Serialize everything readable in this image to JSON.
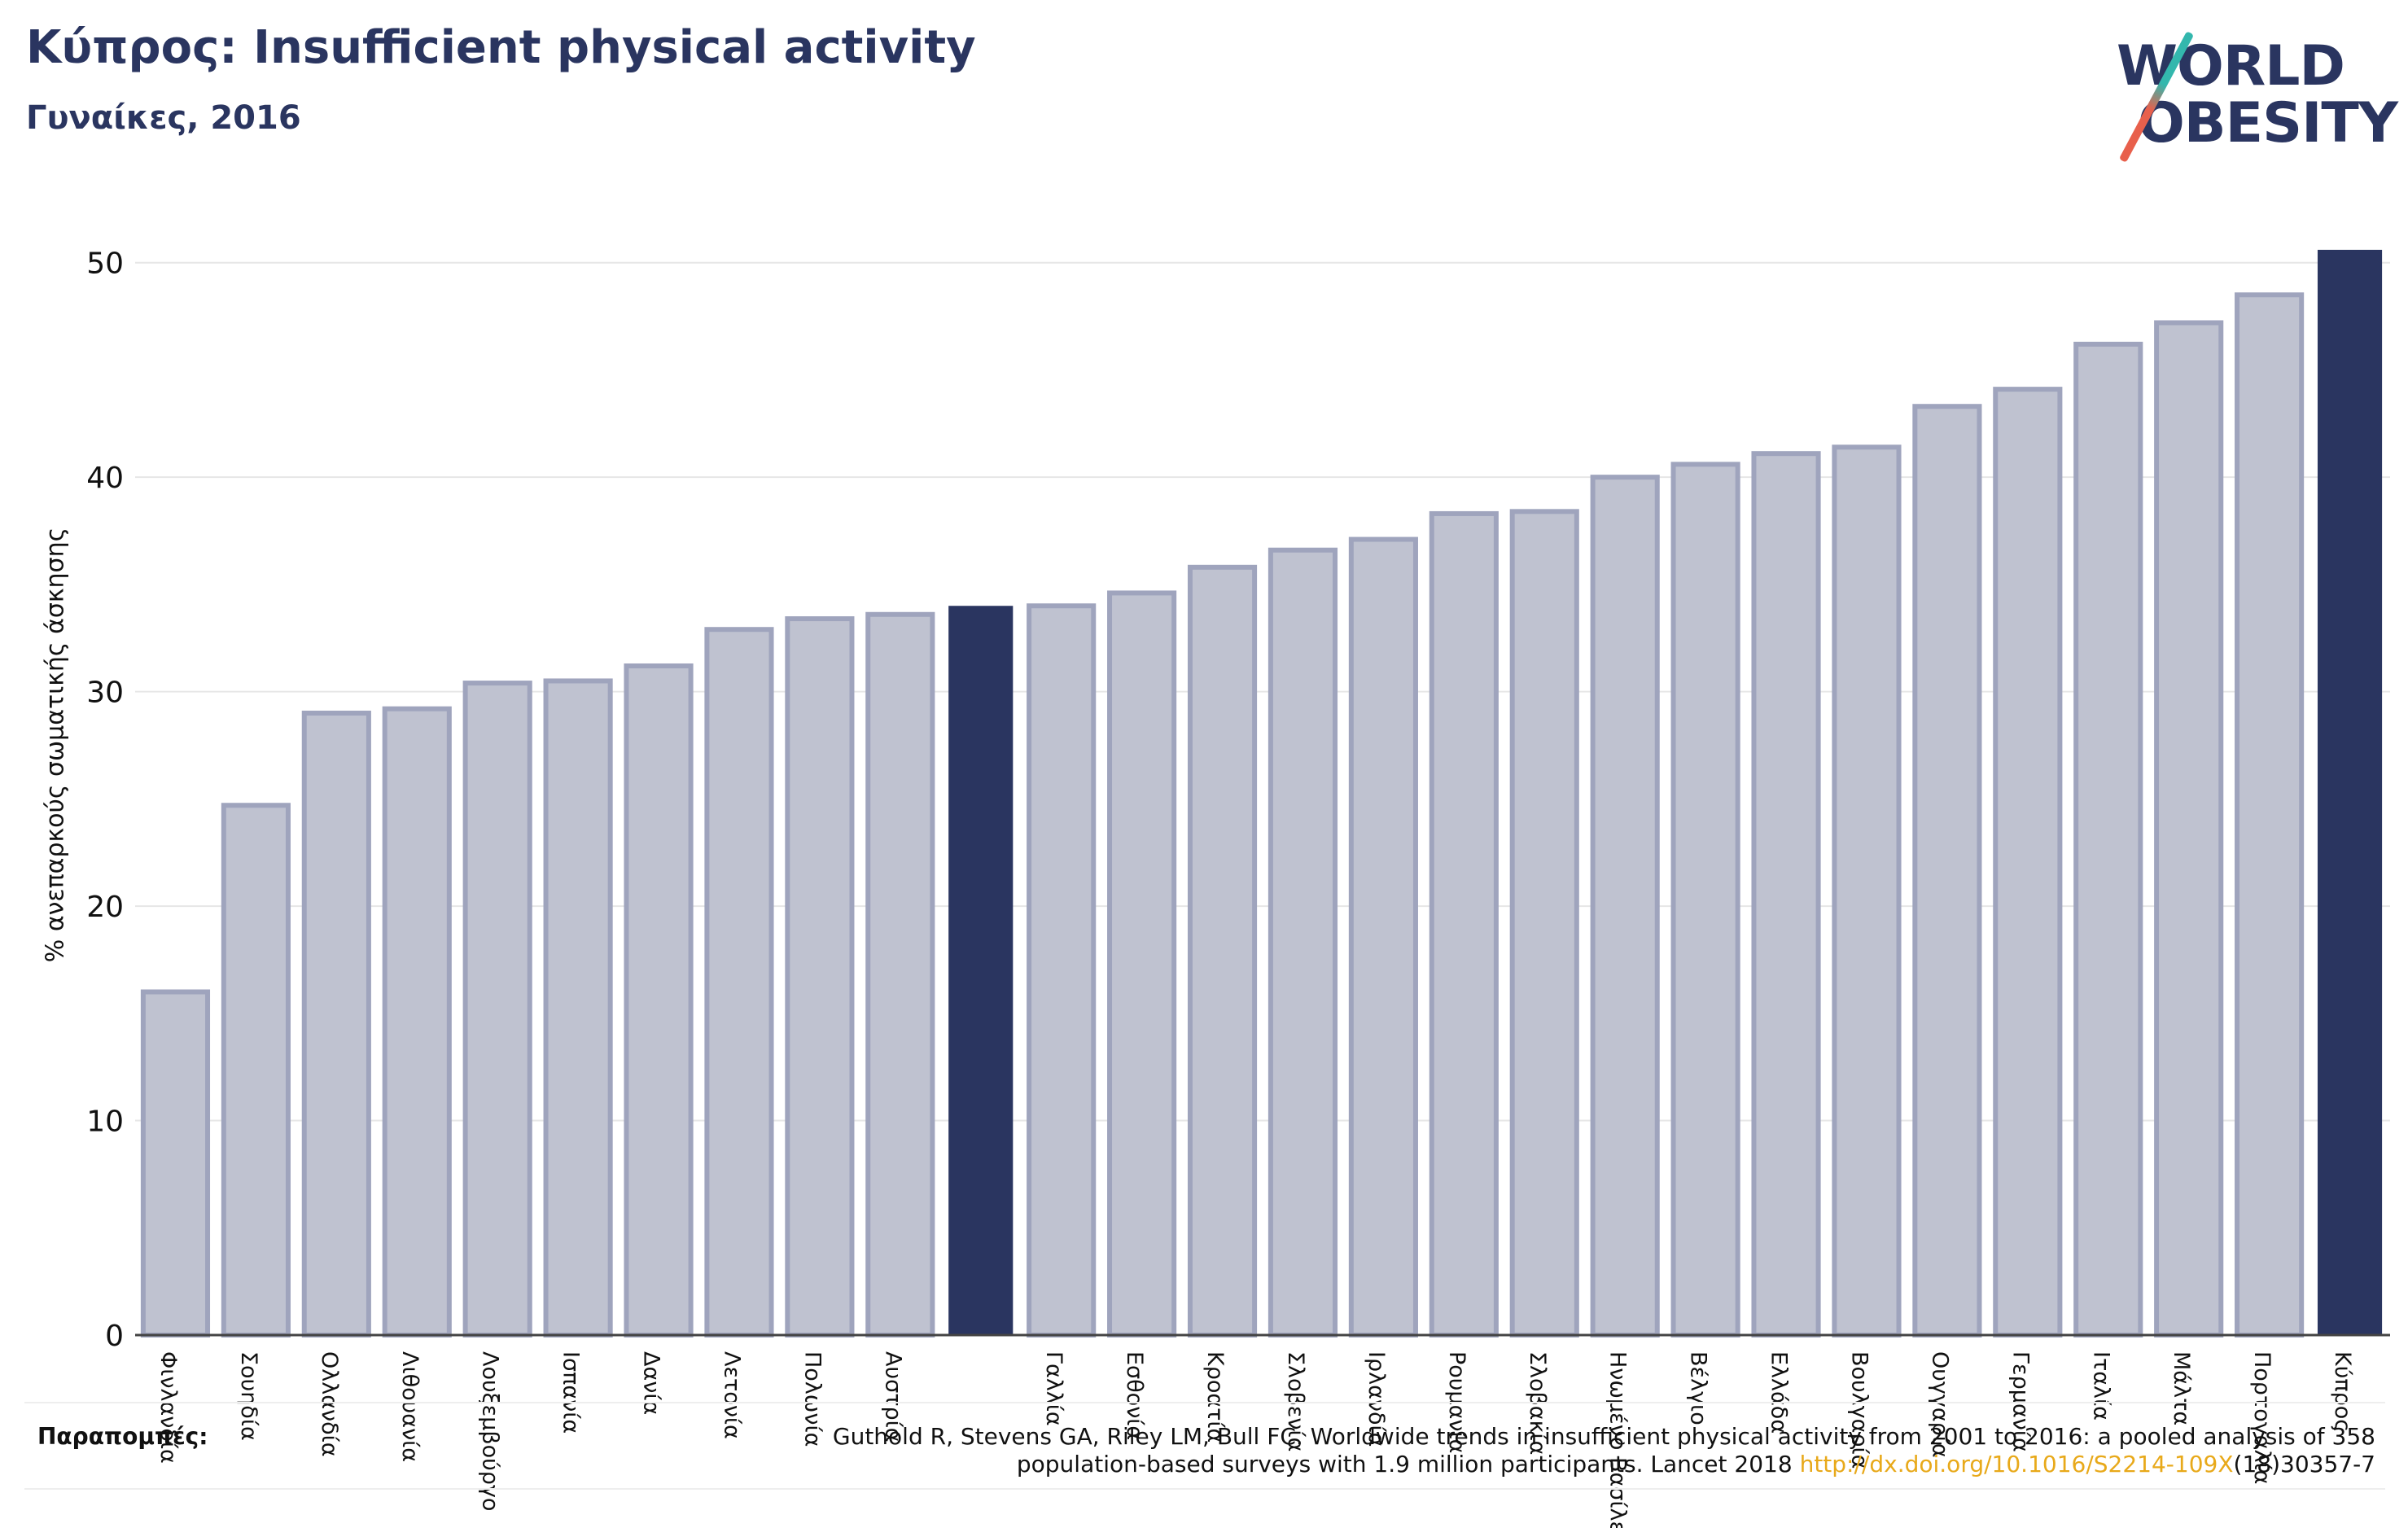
{
  "header": {
    "title": "Κύπρος: Insufficient physical activity",
    "subtitle": "Γυναίκες, 2016"
  },
  "logo": {
    "line1": "WORLD",
    "line2": "OBESITY",
    "colors": {
      "text": "#2a3560",
      "slash_top": "#33b7ad",
      "slash_bottom": "#e8604c"
    }
  },
  "references": {
    "label": "Παραπομπές:",
    "text_before": "Guthold R, Stevens GA, Riley LM, Bull FC. Worldwide trends in insufficient physical activity from 2001 to 2016: a pooled analysis of 358 population-based surveys with 1.9 million participants. Lancet 2018 ",
    "link": "http://dx.doi.org/10.1016/S2214-109X",
    "text_after": "(18)30357-7"
  },
  "chart_data": {
    "type": "bar",
    "title": "Κύπρος: Insufficient physical activity",
    "subtitle": "Γυναίκες, 2016",
    "ylabel": "% ανεπαρκούς σωματικής άσκησης",
    "xlabel": "",
    "ylim": [
      0,
      52
    ],
    "yticks": [
      0,
      10,
      20,
      30,
      40,
      50
    ],
    "grid": true,
    "colors": {
      "default": "#bfc2d0",
      "default_edge": "#9fa4bd",
      "highlight": "#2a3560"
    },
    "categories": [
      "Φινλανδία",
      "Σουηδία",
      "Ολλανδία",
      "Λιθουανία",
      "Λουξεμβούργο",
      "Ισπανία",
      "Δανία",
      "Λετονία",
      "Πολωνία",
      "Αυστρία",
      "",
      "Γαλλία",
      "Εσθονία",
      "Κροατία",
      "Σλοβενία",
      "Ιρλανδία",
      "Ρουμανία",
      "Σλοβακία",
      "Ηνωμένο Βασίλειο",
      "Βέλγιο",
      "Ελλάδα",
      "Βουλγαρία",
      "Ουγγαρία",
      "Γερμανία",
      "Ιταλία",
      "Μάλτα",
      "Πορτογαλία",
      "Κύπρος"
    ],
    "values": [
      16.0,
      24.7,
      29.0,
      29.2,
      30.4,
      30.5,
      31.2,
      32.9,
      33.4,
      33.6,
      34.0,
      34.0,
      34.6,
      35.8,
      36.6,
      37.1,
      38.3,
      38.4,
      40.0,
      40.6,
      41.1,
      41.4,
      43.3,
      44.1,
      46.2,
      47.2,
      48.5,
      50.6
    ],
    "highlight_index": [
      10,
      27
    ]
  }
}
